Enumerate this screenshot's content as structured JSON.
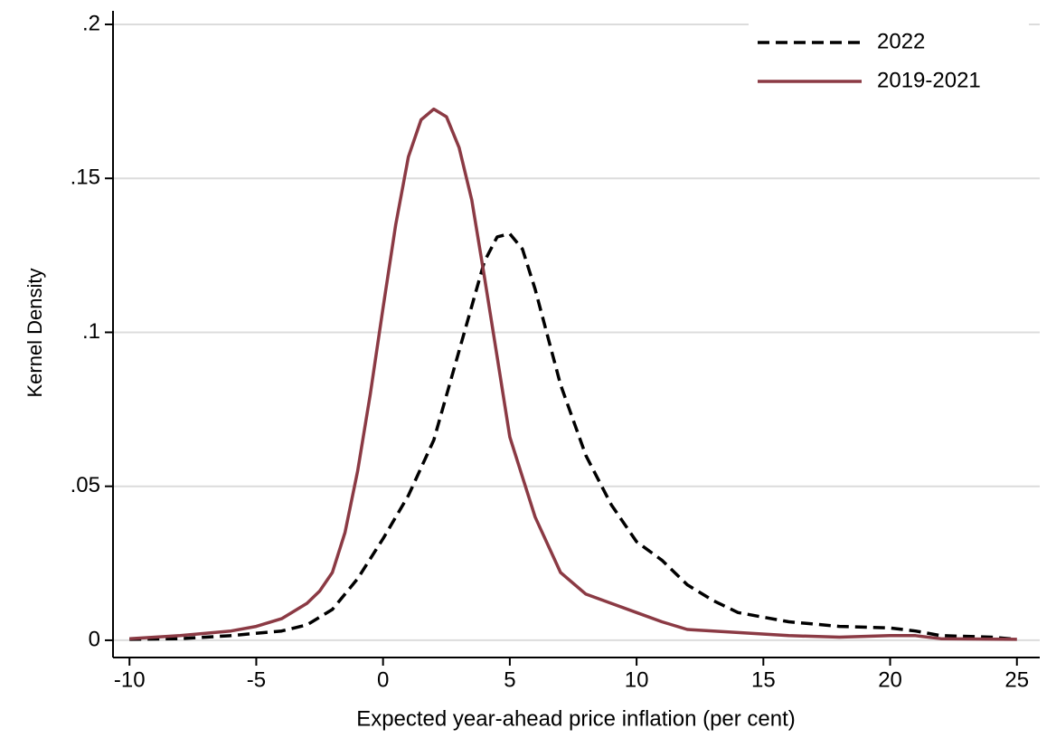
{
  "chart_data": {
    "type": "line",
    "x_label": "Expected year-ahead price inflation (per cent)",
    "y_label": "Kernel Density",
    "xlim": [
      -10.65,
      25.9
    ],
    "ylim": [
      -0.0056,
      0.2044
    ],
    "xticks": [
      -10,
      -5,
      0,
      5,
      10,
      15,
      20,
      25
    ],
    "yticks": [
      0,
      {
        "value": 0.05,
        "label": ".05"
      },
      {
        "value": 0.1,
        "label": ".1"
      },
      {
        "value": 0.15,
        "label": ".15"
      },
      {
        "value": 0.2,
        "label": ".2"
      }
    ],
    "grid": true,
    "legend": "top-right",
    "series": [
      {
        "name": "2022",
        "color": "#000000",
        "dash": true,
        "x": [
          -10,
          -8,
          -6,
          -4,
          -3,
          -2,
          -1,
          0,
          1,
          2,
          3,
          4,
          4.5,
          5,
          5.5,
          6,
          7,
          8,
          9,
          10,
          11,
          12,
          13,
          14,
          15,
          16,
          18,
          20,
          21,
          22,
          24,
          25
        ],
        "values": [
          0.0003,
          0.0005,
          0.0015,
          0.003,
          0.005,
          0.01,
          0.02,
          0.033,
          0.047,
          0.065,
          0.094,
          0.123,
          0.131,
          0.132,
          0.127,
          0.114,
          0.083,
          0.06,
          0.044,
          0.032,
          0.026,
          0.018,
          0.013,
          0.009,
          0.0075,
          0.006,
          0.0045,
          0.004,
          0.003,
          0.0015,
          0.001,
          0.0003
        ]
      },
      {
        "name": "2019-2021",
        "color": "#8b3a44",
        "dash": false,
        "x": [
          -10,
          -8,
          -6,
          -5,
          -4,
          -3,
          -2.5,
          -2,
          -1.5,
          -1,
          -0.5,
          0,
          0.5,
          1,
          1.5,
          2,
          2.5,
          3,
          3.5,
          4,
          4.5,
          5,
          5.5,
          6,
          7,
          8,
          9,
          10,
          11,
          12,
          14,
          16,
          18,
          20,
          21,
          22,
          25
        ],
        "values": [
          0.0005,
          0.0015,
          0.003,
          0.0045,
          0.007,
          0.012,
          0.016,
          0.022,
          0.035,
          0.055,
          0.08,
          0.108,
          0.135,
          0.157,
          0.169,
          0.1725,
          0.17,
          0.16,
          0.143,
          0.118,
          0.092,
          0.066,
          0.053,
          0.04,
          0.022,
          0.015,
          0.012,
          0.009,
          0.006,
          0.0035,
          0.0025,
          0.0015,
          0.001,
          0.0015,
          0.0015,
          0.0005,
          0.0003
        ]
      }
    ]
  }
}
